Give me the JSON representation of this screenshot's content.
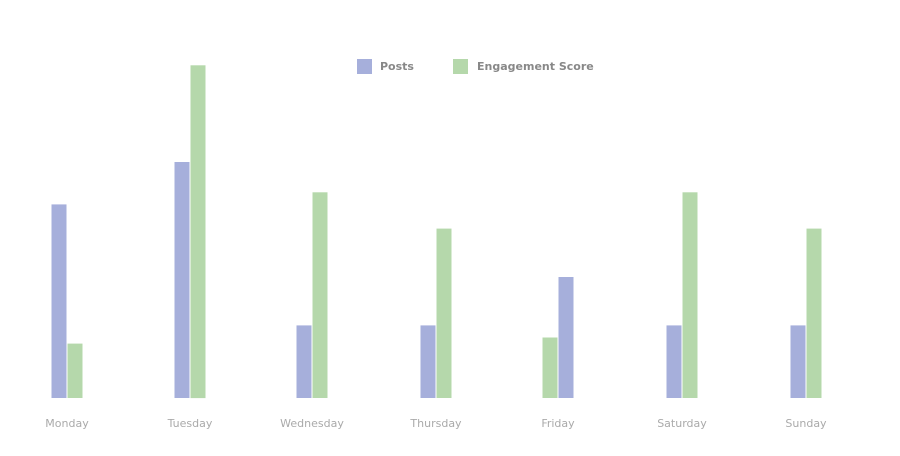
{
  "chart_data": {
    "type": "bar",
    "categories": [
      "Monday",
      "Tuesday",
      "Wednesday",
      "Thursday",
      "Friday",
      "Saturday",
      "Sunday"
    ],
    "series": [
      {
        "name": "Posts",
        "color": "#a6afdb",
        "values": [
          1.6,
          1.95,
          0.6,
          0.6,
          1.0,
          0.6,
          0.6
        ],
        "order": [
          0,
          0,
          0,
          0,
          1,
          0,
          0
        ]
      },
      {
        "name": "Engagement Score",
        "color": "#b5d8ab",
        "values": [
          0.45,
          2.75,
          1.7,
          1.4,
          0.5,
          1.7,
          1.4
        ],
        "order": [
          1,
          1,
          1,
          1,
          0,
          1,
          1
        ]
      }
    ],
    "ylim": [
      0,
      3
    ],
    "grid": false,
    "legend_position": "top"
  }
}
